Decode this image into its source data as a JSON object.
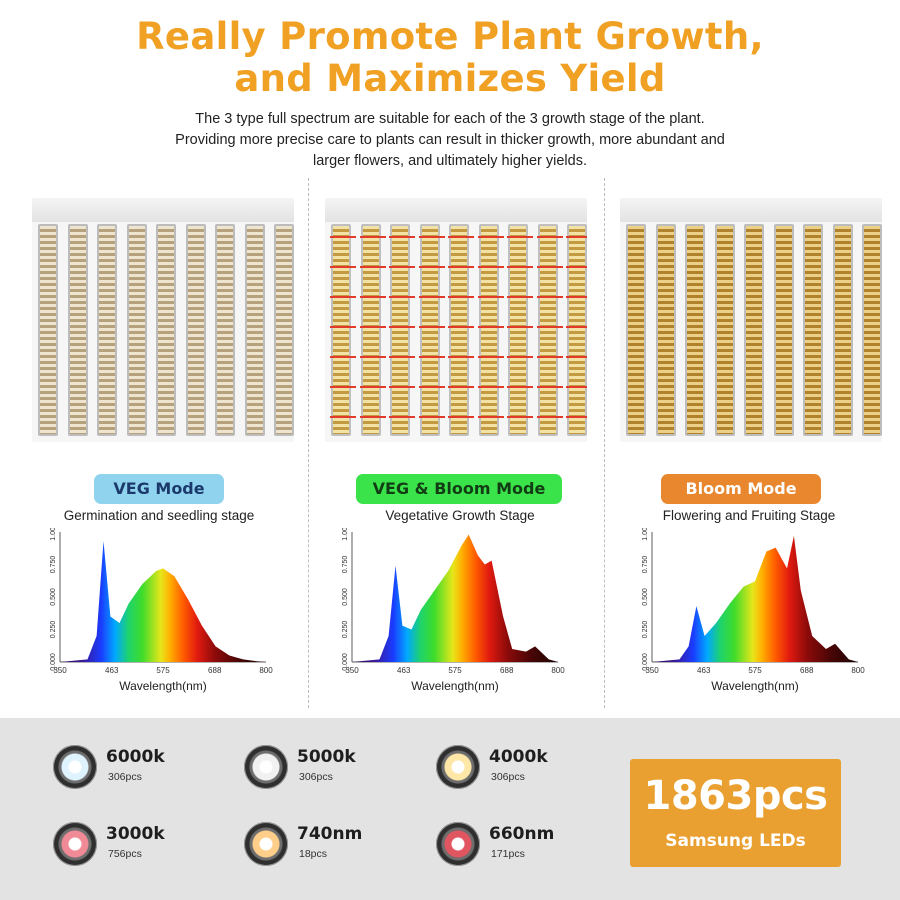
{
  "header": {
    "title_line1": "Really Promote Plant Growth,",
    "title_line2": "and Maximizes Yield",
    "subtitle_line1": "The 3 type full spectrum are suitable for each of the 3 growth stage of the plant.",
    "subtitle_line2": "Providing more precise care to plants can result in thicker growth, more abundant and",
    "subtitle_line3": "larger flowers, and ultimately higher yields."
  },
  "modes": [
    {
      "label": "VEG Mode",
      "stage": "Germination and seedling stage",
      "color": "#8fd3ee",
      "text_color": "#1b3a6b"
    },
    {
      "label": "VEG & Bloom Mode",
      "stage": "Vegetative Growth Stage",
      "color": "#3be34a",
      "text_color": "#123c14"
    },
    {
      "label": "Bloom Mode",
      "stage": "Flowering and Fruiting Stage",
      "color": "#e8872d",
      "text_color": "#ffffff"
    }
  ],
  "spectrum": {
    "xlabel": "Wavelength(nm)",
    "x_ticks": [
      "350",
      "463",
      "575",
      "688",
      "800"
    ],
    "y_ticks": [
      "0.000",
      "0.250",
      "0.500",
      "0.750",
      "1.000"
    ]
  },
  "leds": [
    {
      "name": "6000k",
      "qty": "306pcs",
      "icon": "white-led-chip-icon",
      "color": "#dff3ff"
    },
    {
      "name": "5000k",
      "qty": "306pcs",
      "icon": "white-led-chip-icon",
      "color": "#f1f1f1"
    },
    {
      "name": "4000k",
      "qty": "306pcs",
      "icon": "warm-led-chip-icon",
      "color": "#ffe7a8"
    },
    {
      "name": "3000k",
      "qty": "756pcs",
      "icon": "red-led-chip-icon",
      "color": "#f08a96"
    },
    {
      "name": "740nm",
      "qty": "18pcs",
      "icon": "orange-led-chip-icon",
      "color": "#ffcf8a"
    },
    {
      "name": "660nm",
      "qty": "171pcs",
      "icon": "deep-red-led-chip-icon",
      "color": "#e05560"
    }
  ],
  "total": {
    "count": "1863pcs",
    "label": "Samsung LEDs",
    "color": "#e9a030"
  },
  "chart_data": [
    {
      "type": "line",
      "title": "",
      "xlabel": "Wavelength(nm)",
      "ylabel": "",
      "xlim": [
        350,
        800
      ],
      "ylim": [
        0,
        1
      ],
      "x": [
        350,
        410,
        430,
        445,
        460,
        480,
        500,
        530,
        560,
        575,
        600,
        630,
        660,
        690,
        720,
        750,
        780,
        800
      ],
      "series": [
        {
          "values": [
            0,
            0.02,
            0.2,
            0.93,
            0.35,
            0.3,
            0.45,
            0.6,
            0.7,
            0.72,
            0.66,
            0.48,
            0.28,
            0.12,
            0.05,
            0.02,
            0.005,
            0
          ]
        }
      ]
    },
    {
      "type": "line",
      "title": "",
      "xlabel": "Wavelength(nm)",
      "ylabel": "",
      "xlim": [
        350,
        800
      ],
      "ylim": [
        0,
        1
      ],
      "x": [
        350,
        410,
        430,
        445,
        460,
        480,
        500,
        530,
        560,
        590,
        605,
        625,
        640,
        655,
        680,
        700,
        730,
        750,
        780,
        800
      ],
      "series": [
        {
          "values": [
            0,
            0.02,
            0.2,
            0.74,
            0.28,
            0.25,
            0.4,
            0.55,
            0.7,
            0.9,
            0.98,
            0.82,
            0.75,
            0.78,
            0.35,
            0.1,
            0.08,
            0.12,
            0.02,
            0
          ]
        }
      ]
    },
    {
      "type": "line",
      "title": "",
      "xlabel": "Wavelength(nm)",
      "ylabel": "",
      "xlim": [
        350,
        800
      ],
      "ylim": [
        0,
        1
      ],
      "x": [
        350,
        410,
        430,
        447,
        465,
        490,
        520,
        550,
        575,
        600,
        620,
        645,
        660,
        675,
        700,
        730,
        750,
        780,
        800
      ],
      "series": [
        {
          "values": [
            0,
            0.02,
            0.12,
            0.43,
            0.2,
            0.3,
            0.45,
            0.58,
            0.62,
            0.85,
            0.88,
            0.72,
            0.97,
            0.55,
            0.2,
            0.1,
            0.14,
            0.02,
            0
          ]
        }
      ]
    }
  ]
}
